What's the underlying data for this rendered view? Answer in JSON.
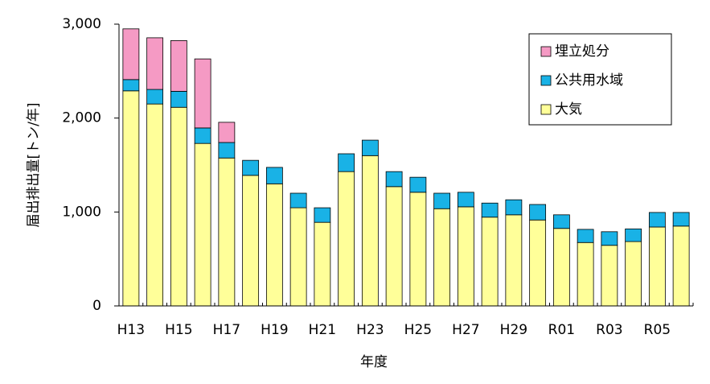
{
  "chart_data": {
    "type": "stacked_bar",
    "y_label": "届出排出量[トン/年]",
    "x_label": "年度",
    "categories": [
      "H13",
      null,
      "H15",
      null,
      "H17",
      null,
      "H19",
      null,
      "H21",
      null,
      "H23",
      null,
      "H25",
      null,
      "H27",
      null,
      "H29",
      null,
      "R01",
      null,
      "R03",
      null,
      "R05",
      null
    ],
    "series": [
      {
        "name": "大気",
        "color": "#ffff99",
        "values": [
          2290,
          2150,
          2115,
          1730,
          1575,
          1390,
          1300,
          1045,
          890,
          1430,
          1600,
          1270,
          1210,
          1035,
          1055,
          945,
          970,
          915,
          825,
          675,
          645,
          685,
          840,
          850
        ]
      },
      {
        "name": "公共用水域",
        "color": "#19b2e6",
        "values": [
          120,
          155,
          170,
          165,
          165,
          160,
          175,
          155,
          155,
          190,
          165,
          160,
          160,
          165,
          155,
          150,
          160,
          165,
          145,
          140,
          145,
          135,
          155,
          145
        ]
      },
      {
        "name": "埋立処分",
        "color": "#f59ac4",
        "values": [
          540,
          550,
          540,
          735,
          215,
          0,
          0,
          0,
          0,
          0,
          0,
          0,
          0,
          0,
          0,
          0,
          0,
          0,
          0,
          0,
          0,
          0,
          0,
          0
        ]
      }
    ],
    "ylim": [
      0,
      3000
    ],
    "yticks": [
      0,
      {
        "value": 1000,
        "label": "1,000"
      },
      {
        "value": 2000,
        "label": "2,000"
      },
      {
        "value": 3000,
        "label": "3,000"
      }
    ],
    "legend": "top-right"
  }
}
